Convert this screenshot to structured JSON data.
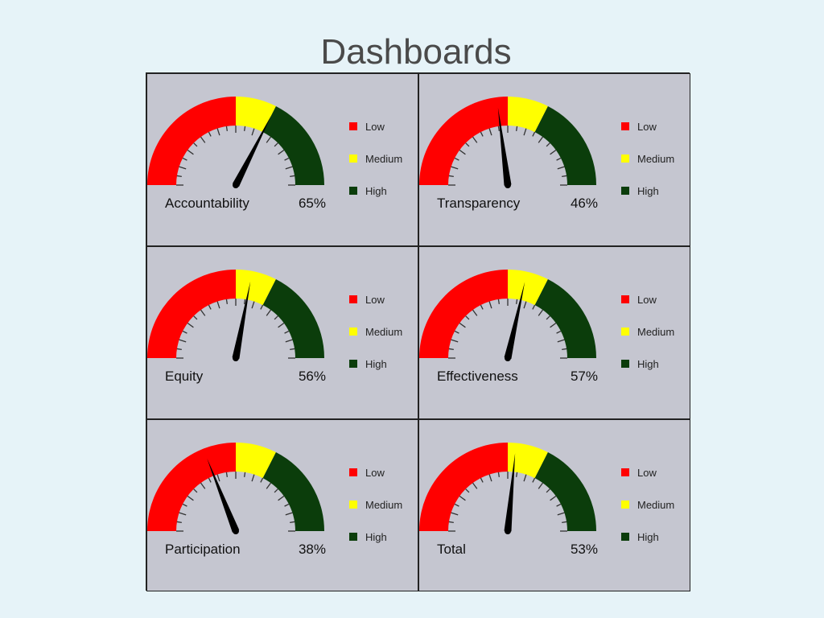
{
  "title": "Dashboards",
  "legend": [
    {
      "label": "Low",
      "color": "#ff0000"
    },
    {
      "label": "Medium",
      "color": "#ffff00"
    },
    {
      "label": "High",
      "color": "#0b3d0b"
    }
  ],
  "gauge_zones": {
    "low_end": 50,
    "medium_end": 65,
    "colors": {
      "low": "#ff0000",
      "medium": "#ffff00",
      "high": "#0b3d0b"
    }
  },
  "chart_data": [
    {
      "type": "gauge",
      "title": "Accountability",
      "value_label": "65%",
      "value": 65,
      "range": [
        0,
        100
      ]
    },
    {
      "type": "gauge",
      "title": "Transparency",
      "value_label": "46%",
      "value": 46,
      "range": [
        0,
        100
      ]
    },
    {
      "type": "gauge",
      "title": "Equity",
      "value_label": "56%",
      "value": 56,
      "range": [
        0,
        100
      ]
    },
    {
      "type": "gauge",
      "title": "Effectiveness",
      "value_label": "57%",
      "value": 57,
      "range": [
        0,
        100
      ]
    },
    {
      "type": "gauge",
      "title": "Participation",
      "value_label": "38%",
      "value": 38,
      "range": [
        0,
        100
      ]
    },
    {
      "type": "gauge",
      "title": "Total",
      "value_label": "53%",
      "value": 53,
      "range": [
        0,
        100
      ]
    }
  ]
}
